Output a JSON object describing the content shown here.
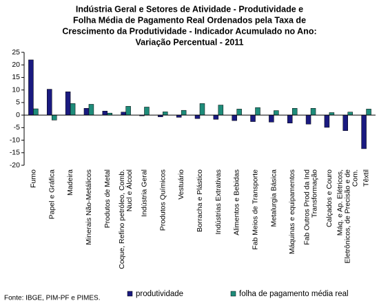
{
  "chart_data": {
    "type": "bar",
    "title": [
      "Indústria Geral e Setores de Atividade - Produtividade e",
      "Folha Média de Pagamento Real Ordenados pela Taxa de",
      "Crescimento da Produtividade - Indicador Acumulado no Ano:",
      "Variação Percentual - 2011"
    ],
    "categories": [
      "Fumo",
      "Papel e Gráfica",
      "Madeira",
      "Minerais Não-Metálicos",
      "Produtos de Metal",
      "Coque, Refino petróleo, Comb. Nucl e Álcool",
      "Indústria Geral",
      "Produtos Químicos",
      "Vestuário",
      "Borracha e Plástico",
      "Indústrias Extrativas",
      "Alimentos e Bebidas",
      "Fab Meios de Transporte",
      "Metalurgia Básica",
      "Máquinas e equipamentos",
      "Fab Outros Prod da Ind Transformação",
      "Calçados e Couro",
      "Máq. e Ap. Elétricos, Eletrônicos, de Precisão e de Com.",
      "Têxtil"
    ],
    "series": [
      {
        "name": "produtividade",
        "color": "#1a1a80",
        "values": [
          22,
          10.3,
          9.3,
          2.7,
          1.6,
          1.2,
          -0.3,
          -0.7,
          -0.9,
          -1.4,
          -1.7,
          -2.2,
          -2.6,
          -2.8,
          -3.2,
          -3.6,
          -4.9,
          -6.2,
          -13.4
        ]
      },
      {
        "name": "folha de pagamento média real",
        "color": "#1e8c7a",
        "values": [
          2.5,
          -2,
          4.6,
          4.3,
          0.8,
          3.5,
          3.2,
          1.3,
          1.9,
          4.6,
          4.0,
          2.4,
          3.0,
          1.8,
          2.7,
          2.7,
          1.0,
          1.2,
          2.4
        ]
      }
    ],
    "ylim": [
      -20,
      25
    ],
    "yticks": [
      -20,
      -15,
      -10,
      -5,
      0,
      5,
      10,
      15,
      20,
      25
    ],
    "grid": false,
    "source": "Fonte: IBGE, PIM-PF e PIMES."
  }
}
